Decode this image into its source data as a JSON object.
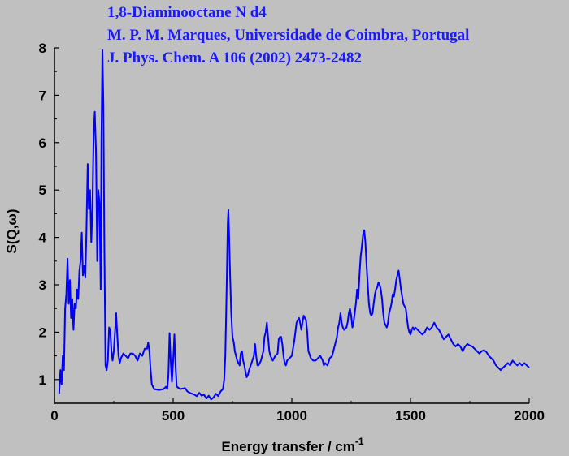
{
  "colors": {
    "background": "#c0c0c0",
    "title": "#1a1aff",
    "series": "#0000ff",
    "axis": "#000000"
  },
  "chart_data": {
    "type": "line",
    "title_lines": [
      "1,8-Diaminooctane N d4",
      "M. P. M. Marques, Universidade de Coimbra, Portugal",
      "J. Phys. Chem. A 106 (2002) 2473-2482"
    ],
    "xlabel": "Energy transfer / cm",
    "xlabel_sup": "-1",
    "ylabel": "S(Q,ω)",
    "xlim": [
      0,
      2000
    ],
    "ylim": [
      0.5,
      8.0
    ],
    "xticks": [
      "0",
      "500",
      "1000",
      "1500",
      "2000"
    ],
    "yticks": [
      "1",
      "2",
      "3",
      "4",
      "5",
      "6",
      "7",
      "8"
    ],
    "grid": false,
    "legend": "none",
    "series": [
      {
        "points": [
          [
            20,
            0.7
          ],
          [
            25,
            1.2
          ],
          [
            30,
            0.9
          ],
          [
            35,
            1.5
          ],
          [
            40,
            1.2
          ],
          [
            45,
            2.5
          ],
          [
            50,
            2.8
          ],
          [
            55,
            3.55
          ],
          [
            60,
            2.6
          ],
          [
            65,
            3.1
          ],
          [
            70,
            2.3
          ],
          [
            75,
            2.7
          ],
          [
            80,
            2.05
          ],
          [
            85,
            2.6
          ],
          [
            90,
            2.5
          ],
          [
            95,
            2.9
          ],
          [
            100,
            2.7
          ],
          [
            105,
            3.3
          ],
          [
            110,
            3.5
          ],
          [
            115,
            4.1
          ],
          [
            120,
            3.2
          ],
          [
            125,
            3.4
          ],
          [
            130,
            3.15
          ],
          [
            135,
            4.2
          ],
          [
            140,
            5.55
          ],
          [
            145,
            4.6
          ],
          [
            150,
            5.0
          ],
          [
            155,
            3.9
          ],
          [
            160,
            4.6
          ],
          [
            165,
            6.2
          ],
          [
            170,
            6.65
          ],
          [
            175,
            5.8
          ],
          [
            180,
            3.5
          ],
          [
            185,
            5.0
          ],
          [
            190,
            4.7
          ],
          [
            195,
            2.9
          ],
          [
            198,
            6.0
          ],
          [
            202,
            7.95
          ],
          [
            206,
            6.8
          ],
          [
            210,
            4.0
          ],
          [
            215,
            1.3
          ],
          [
            220,
            1.2
          ],
          [
            225,
            1.4
          ],
          [
            230,
            2.1
          ],
          [
            235,
            2.05
          ],
          [
            240,
            1.6
          ],
          [
            245,
            1.4
          ],
          [
            250,
            1.6
          ],
          [
            255,
            2.0
          ],
          [
            260,
            2.4
          ],
          [
            265,
            1.9
          ],
          [
            270,
            1.5
          ],
          [
            275,
            1.35
          ],
          [
            280,
            1.45
          ],
          [
            290,
            1.55
          ],
          [
            300,
            1.5
          ],
          [
            310,
            1.45
          ],
          [
            320,
            1.55
          ],
          [
            330,
            1.55
          ],
          [
            340,
            1.5
          ],
          [
            350,
            1.4
          ],
          [
            360,
            1.55
          ],
          [
            370,
            1.5
          ],
          [
            380,
            1.65
          ],
          [
            390,
            1.65
          ],
          [
            395,
            1.78
          ],
          [
            400,
            1.6
          ],
          [
            405,
            1.2
          ],
          [
            410,
            0.9
          ],
          [
            420,
            0.8
          ],
          [
            440,
            0.78
          ],
          [
            460,
            0.8
          ],
          [
            470,
            0.85
          ],
          [
            475,
            0.8
          ],
          [
            480,
            1.1
          ],
          [
            485,
            1.98
          ],
          [
            490,
            1.35
          ],
          [
            495,
            0.95
          ],
          [
            500,
            1.4
          ],
          [
            505,
            1.95
          ],
          [
            510,
            1.3
          ],
          [
            515,
            0.85
          ],
          [
            530,
            0.8
          ],
          [
            550,
            0.82
          ],
          [
            560,
            0.75
          ],
          [
            570,
            0.72
          ],
          [
            580,
            0.7
          ],
          [
            590,
            0.68
          ],
          [
            600,
            0.65
          ],
          [
            610,
            0.72
          ],
          [
            620,
            0.66
          ],
          [
            630,
            0.68
          ],
          [
            640,
            0.6
          ],
          [
            650,
            0.66
          ],
          [
            660,
            0.58
          ],
          [
            670,
            0.62
          ],
          [
            680,
            0.7
          ],
          [
            690,
            0.65
          ],
          [
            700,
            0.75
          ],
          [
            710,
            0.8
          ],
          [
            715,
            1.0
          ],
          [
            720,
            1.5
          ],
          [
            725,
            2.8
          ],
          [
            730,
            4.3
          ],
          [
            733,
            4.58
          ],
          [
            736,
            4.0
          ],
          [
            740,
            3.2
          ],
          [
            745,
            2.4
          ],
          [
            750,
            1.9
          ],
          [
            755,
            1.8
          ],
          [
            760,
            1.6
          ],
          [
            770,
            1.4
          ],
          [
            780,
            1.3
          ],
          [
            785,
            1.55
          ],
          [
            790,
            1.6
          ],
          [
            795,
            1.4
          ],
          [
            800,
            1.3
          ],
          [
            805,
            1.15
          ],
          [
            810,
            1.05
          ],
          [
            815,
            1.1
          ],
          [
            820,
            1.2
          ],
          [
            830,
            1.35
          ],
          [
            840,
            1.5
          ],
          [
            845,
            1.75
          ],
          [
            850,
            1.5
          ],
          [
            855,
            1.3
          ],
          [
            860,
            1.3
          ],
          [
            870,
            1.4
          ],
          [
            880,
            1.6
          ],
          [
            885,
            1.9
          ],
          [
            890,
            2.0
          ],
          [
            895,
            2.2
          ],
          [
            900,
            1.9
          ],
          [
            905,
            1.6
          ],
          [
            910,
            1.5
          ],
          [
            920,
            1.4
          ],
          [
            930,
            1.5
          ],
          [
            940,
            1.55
          ],
          [
            945,
            1.85
          ],
          [
            950,
            1.9
          ],
          [
            955,
            1.9
          ],
          [
            960,
            1.75
          ],
          [
            965,
            1.5
          ],
          [
            970,
            1.35
          ],
          [
            975,
            1.3
          ],
          [
            980,
            1.4
          ],
          [
            990,
            1.45
          ],
          [
            1000,
            1.5
          ],
          [
            1010,
            1.8
          ],
          [
            1015,
            2.0
          ],
          [
            1020,
            2.2
          ],
          [
            1030,
            2.3
          ],
          [
            1035,
            2.2
          ],
          [
            1040,
            2.05
          ],
          [
            1045,
            2.2
          ],
          [
            1050,
            2.35
          ],
          [
            1060,
            2.25
          ],
          [
            1065,
            2.0
          ],
          [
            1070,
            1.6
          ],
          [
            1080,
            1.45
          ],
          [
            1090,
            1.4
          ],
          [
            1100,
            1.4
          ],
          [
            1110,
            1.45
          ],
          [
            1120,
            1.5
          ],
          [
            1130,
            1.4
          ],
          [
            1135,
            1.3
          ],
          [
            1140,
            1.35
          ],
          [
            1150,
            1.3
          ],
          [
            1160,
            1.45
          ],
          [
            1170,
            1.5
          ],
          [
            1180,
            1.7
          ],
          [
            1190,
            1.9
          ],
          [
            1195,
            2.1
          ],
          [
            1200,
            2.2
          ],
          [
            1205,
            2.4
          ],
          [
            1210,
            2.2
          ],
          [
            1215,
            2.1
          ],
          [
            1220,
            2.05
          ],
          [
            1230,
            2.1
          ],
          [
            1235,
            2.2
          ],
          [
            1240,
            2.4
          ],
          [
            1245,
            2.5
          ],
          [
            1250,
            2.35
          ],
          [
            1255,
            2.1
          ],
          [
            1260,
            2.2
          ],
          [
            1270,
            2.6
          ],
          [
            1275,
            2.9
          ],
          [
            1280,
            2.7
          ],
          [
            1285,
            3.2
          ],
          [
            1290,
            3.6
          ],
          [
            1295,
            3.8
          ],
          [
            1300,
            4.05
          ],
          [
            1305,
            4.15
          ],
          [
            1310,
            3.9
          ],
          [
            1315,
            3.4
          ],
          [
            1320,
            3.0
          ],
          [
            1325,
            2.6
          ],
          [
            1330,
            2.4
          ],
          [
            1335,
            2.35
          ],
          [
            1340,
            2.4
          ],
          [
            1345,
            2.6
          ],
          [
            1350,
            2.8
          ],
          [
            1355,
            2.9
          ],
          [
            1360,
            2.95
          ],
          [
            1365,
            3.05
          ],
          [
            1370,
            3.0
          ],
          [
            1375,
            2.9
          ],
          [
            1380,
            2.7
          ],
          [
            1385,
            2.4
          ],
          [
            1390,
            2.2
          ],
          [
            1395,
            2.15
          ],
          [
            1400,
            2.1
          ],
          [
            1405,
            2.2
          ],
          [
            1410,
            2.4
          ],
          [
            1415,
            2.5
          ],
          [
            1420,
            2.6
          ],
          [
            1425,
            2.8
          ],
          [
            1430,
            2.75
          ],
          [
            1435,
            2.9
          ],
          [
            1440,
            3.1
          ],
          [
            1445,
            3.2
          ],
          [
            1450,
            3.3
          ],
          [
            1455,
            3.1
          ],
          [
            1460,
            2.9
          ],
          [
            1465,
            2.75
          ],
          [
            1470,
            2.6
          ],
          [
            1475,
            2.55
          ],
          [
            1480,
            2.5
          ],
          [
            1485,
            2.3
          ],
          [
            1490,
            2.1
          ],
          [
            1495,
            2.0
          ],
          [
            1500,
            1.95
          ],
          [
            1505,
            2.05
          ],
          [
            1510,
            2.1
          ],
          [
            1515,
            2.05
          ],
          [
            1520,
            2.1
          ],
          [
            1530,
            2.05
          ],
          [
            1540,
            2.0
          ],
          [
            1550,
            1.95
          ],
          [
            1560,
            2.0
          ],
          [
            1570,
            2.1
          ],
          [
            1580,
            2.05
          ],
          [
            1590,
            2.1
          ],
          [
            1600,
            2.2
          ],
          [
            1610,
            2.1
          ],
          [
            1620,
            2.05
          ],
          [
            1630,
            1.95
          ],
          [
            1640,
            1.85
          ],
          [
            1650,
            1.9
          ],
          [
            1660,
            1.95
          ],
          [
            1670,
            1.85
          ],
          [
            1680,
            1.75
          ],
          [
            1690,
            1.7
          ],
          [
            1700,
            1.75
          ],
          [
            1710,
            1.7
          ],
          [
            1720,
            1.6
          ],
          [
            1730,
            1.7
          ],
          [
            1740,
            1.75
          ],
          [
            1750,
            1.72
          ],
          [
            1760,
            1.7
          ],
          [
            1770,
            1.65
          ],
          [
            1780,
            1.6
          ],
          [
            1790,
            1.55
          ],
          [
            1800,
            1.6
          ],
          [
            1810,
            1.62
          ],
          [
            1820,
            1.58
          ],
          [
            1830,
            1.5
          ],
          [
            1840,
            1.45
          ],
          [
            1850,
            1.4
          ],
          [
            1860,
            1.3
          ],
          [
            1870,
            1.25
          ],
          [
            1880,
            1.2
          ],
          [
            1890,
            1.25
          ],
          [
            1900,
            1.3
          ],
          [
            1910,
            1.35
          ],
          [
            1920,
            1.3
          ],
          [
            1930,
            1.4
          ],
          [
            1940,
            1.35
          ],
          [
            1950,
            1.3
          ],
          [
            1960,
            1.35
          ],
          [
            1970,
            1.3
          ],
          [
            1980,
            1.35
          ],
          [
            1990,
            1.3
          ],
          [
            2000,
            1.25
          ]
        ]
      }
    ]
  }
}
